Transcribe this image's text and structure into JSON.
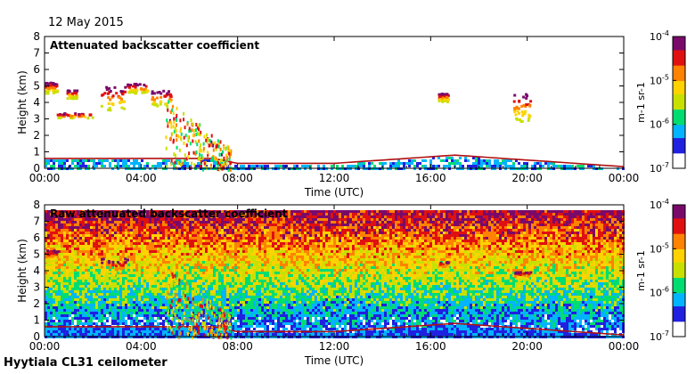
{
  "header": {
    "date": "12 May 2015"
  },
  "footer": {
    "instrument": "Hyytiala CL31 ceilometer"
  },
  "colormap": [
    "#ffffff",
    "#2020e0",
    "#00b4ff",
    "#00dd70",
    "#c8e000",
    "#ffd200",
    "#ff8200",
    "#e01010",
    "#7a0a6a"
  ],
  "chart_data": [
    {
      "type": "heatmap",
      "title": "Attenuated backscatter coefficient",
      "xlabel": "Time (UTC)",
      "ylabel": "Height (km)",
      "xlim": [
        0,
        24
      ],
      "ylim": [
        0,
        8
      ],
      "x_ticks": [
        0,
        4,
        8,
        12,
        16,
        20,
        24
      ],
      "x_tick_labels": [
        "00:00",
        "04:00",
        "08:00",
        "12:00",
        "16:00",
        "20:00",
        "00:00"
      ],
      "y_ticks": [
        0,
        1,
        2,
        3,
        4,
        5,
        6,
        7,
        8
      ],
      "y_tick_labels": [
        "0",
        "1",
        "2",
        "3",
        "4",
        "5",
        "6",
        "7",
        "8"
      ],
      "colorbar": {
        "label": "m-1 sr-1",
        "scale": "log",
        "range": [
          1e-07,
          0.0001
        ],
        "tick_mantissa": "10",
        "tick_exponents": [
          "-7",
          "-6",
          "-5",
          "-4"
        ]
      },
      "boundary_layer_top_km": [
        [
          0,
          0.6
        ],
        [
          7,
          0.6
        ],
        [
          8,
          0.3
        ],
        [
          12,
          0.3
        ],
        [
          14,
          0.5
        ],
        [
          17,
          0.8
        ],
        [
          20,
          0.5
        ],
        [
          24,
          0.1
        ]
      ],
      "cloud_features": [
        {
          "t_start": 0.0,
          "t_end": 0.5,
          "h_bottom": 4.6,
          "h_top": 5.3
        },
        {
          "t_start": 0.9,
          "t_end": 1.3,
          "h_bottom": 4.3,
          "h_top": 4.8
        },
        {
          "t_start": 0.5,
          "t_end": 2.0,
          "h_bottom": 3.1,
          "h_top": 3.4
        },
        {
          "t_start": 2.3,
          "t_end": 3.4,
          "h_bottom": 3.6,
          "h_top": 5.0
        },
        {
          "t_start": 3.4,
          "t_end": 4.3,
          "h_bottom": 4.6,
          "h_top": 5.2
        },
        {
          "t_start": 4.4,
          "t_end": 5.2,
          "h_bottom": 3.8,
          "h_top": 4.8
        },
        {
          "t_start": 16.3,
          "t_end": 16.7,
          "h_bottom": 4.1,
          "h_top": 4.6
        },
        {
          "t_start": 19.4,
          "t_end": 20.1,
          "h_bottom": 2.9,
          "h_top": 4.6
        }
      ],
      "precipitation": {
        "t_start": 5.0,
        "t_end": 7.7,
        "h_top": 4.3
      }
    },
    {
      "type": "heatmap",
      "title": "Raw attenuated backscatter coefficient",
      "xlabel": "Time (UTC)",
      "ylabel": "Height (km)",
      "xlim": [
        0,
        24
      ],
      "ylim": [
        0,
        8
      ],
      "x_ticks": [
        0,
        4,
        8,
        12,
        16,
        20,
        24
      ],
      "x_tick_labels": [
        "00:00",
        "04:00",
        "08:00",
        "12:00",
        "16:00",
        "20:00",
        "00:00"
      ],
      "y_ticks": [
        0,
        1,
        2,
        3,
        4,
        5,
        6,
        7,
        8
      ],
      "y_tick_labels": [
        "0",
        "1",
        "2",
        "3",
        "4",
        "5",
        "6",
        "7",
        "8"
      ],
      "colorbar": {
        "label": "m-1 sr-1",
        "scale": "log",
        "range": [
          1e-07,
          0.0001
        ],
        "tick_mantissa": "10",
        "tick_exponents": [
          "-7",
          "-6",
          "-5",
          "-4"
        ]
      },
      "noise_floor_top_km": 7.7,
      "boundary_layer_top_km": [
        [
          0,
          0.6
        ],
        [
          7,
          0.6
        ],
        [
          8,
          0.3
        ],
        [
          12,
          0.3
        ],
        [
          14,
          0.5
        ],
        [
          17,
          0.8
        ],
        [
          20,
          0.5
        ],
        [
          24,
          0.1
        ]
      ],
      "cloud_features": [
        {
          "t_start": 0.0,
          "t_end": 0.5,
          "h_bottom": 4.6,
          "h_top": 5.3
        },
        {
          "t_start": 2.3,
          "t_end": 3.4,
          "h_bottom": 3.6,
          "h_top": 4.8
        },
        {
          "t_start": 16.3,
          "t_end": 16.7,
          "h_bottom": 4.1,
          "h_top": 4.6
        },
        {
          "t_start": 19.4,
          "t_end": 20.1,
          "h_bottom": 3.5,
          "h_top": 4.0
        }
      ],
      "precipitation": {
        "t_start": 5.0,
        "t_end": 7.7,
        "h_top": 4.3
      }
    }
  ]
}
